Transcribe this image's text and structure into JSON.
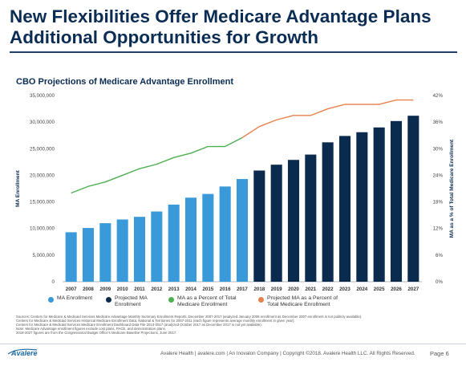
{
  "slide": {
    "title_lines": [
      "New Flexibilities Offer Medicare Advantage Plans",
      "Additional Opportunities for Growth"
    ],
    "subtitle": "CBO Projections of Medicare Advantage Enrollment"
  },
  "chart_data": {
    "type": "bar",
    "title": "CBO Projections of Medicare Advantage Enrollment",
    "categories": [
      "2007",
      "2008",
      "2009",
      "2010",
      "2011",
      "2012",
      "2013",
      "2014",
      "2015",
      "2016",
      "2017",
      "2018",
      "2019",
      "2020",
      "2021",
      "2022",
      "2023",
      "2024",
      "2025",
      "2026",
      "2027"
    ],
    "ylabel": "MA Enrollment",
    "y2label": "MA as a % of Total Medicare Enrollment",
    "ylim": [
      0,
      35000000
    ],
    "y2lim": [
      0,
      42
    ],
    "y_ticks": [
      "0",
      "5,000,000",
      "10,000,000",
      "15,000,000",
      "20,000,000",
      "25,000,000",
      "30,000,000",
      "35,000,000"
    ],
    "y2_ticks": [
      "0%",
      "6%",
      "12%",
      "18%",
      "24%",
      "30%",
      "36%",
      "42%"
    ],
    "grid": false,
    "legend_position": "bottom",
    "series": [
      {
        "name": "MA Enrollment",
        "kind": "bar",
        "axis": "left",
        "color": "#3a9ad9",
        "values": [
          9300000,
          10100000,
          11000000,
          11700000,
          12200000,
          13200000,
          14500000,
          15800000,
          16500000,
          17900000,
          19300000,
          null,
          null,
          null,
          null,
          null,
          null,
          null,
          null,
          null,
          null
        ]
      },
      {
        "name": "Projected MA Enrollment",
        "kind": "bar",
        "axis": "left",
        "color": "#0b2b4e",
        "values": [
          null,
          null,
          null,
          null,
          null,
          null,
          null,
          null,
          null,
          null,
          null,
          20900000,
          22000000,
          22900000,
          23900000,
          26200000,
          27400000,
          28100000,
          29000000,
          30200000,
          31200000
        ]
      },
      {
        "name": "MA as a Percent of Total Medicare Enrollment",
        "kind": "line",
        "axis": "right",
        "color": "#4caf50",
        "values": [
          20,
          21.5,
          22.5,
          24,
          25.5,
          26.5,
          28,
          29,
          30.5,
          30.5,
          32.5,
          null,
          null,
          null,
          null,
          null,
          null,
          null,
          null,
          null,
          null
        ]
      },
      {
        "name": "Projected MA as a Percent of Total Medicare Enrollment",
        "kind": "line",
        "axis": "right",
        "color": "#e8814b",
        "values": [
          null,
          null,
          null,
          null,
          null,
          null,
          null,
          null,
          null,
          null,
          32.5,
          35,
          36.5,
          37.5,
          37.5,
          39,
          40,
          40,
          40,
          41,
          41
        ]
      }
    ]
  },
  "legend": {
    "items": [
      {
        "label": "MA Enrollment",
        "color": "#3a9ad9"
      },
      {
        "label": "Projected MA\nEnrollment",
        "color": "#0b2b4e"
      },
      {
        "label": "MA as a Percent of Total\nMedicare Enrollment",
        "color": "#4caf50"
      },
      {
        "label": "Projected MA as a Percent of\nTotal Medicare Enrollment",
        "color": "#e8814b"
      }
    ]
  },
  "notes": [
    "Sources: Centers for Medicare & Medicaid Services Medicare Advantage Monthly Summary Enrollment Reports, December 2007-2017 (analyzed January 2008 enrollment as December 2007 enrollment is not publicly available).",
    "Centers for Medicare & Medicaid Services Historical Medicare Enrollment Data, National & Territories for 2007-2011 (each figure represents average monthly enrollment in given year).",
    "Centers for Medicare & Medicaid Services Medicare Enrollment Dashboard Data File 2013-2017 (analyzed October 2017 as December 2017 is not yet available).",
    "Note: Medicare Advantage enrollment figures exclude cost plans, PACE, and demonstration plans.",
    "2018-2027 figures are from the Congressional Budget Office's Medicare Baseline Projections, June 2017."
  ],
  "footer": {
    "logo_text": "Avalere",
    "text": "Avalere Health  |  avalere.com  |  An Inovalon Company  |  Copyright ©2018. Avalere Health LLC. All Rights Reserved.",
    "page": "Page 6"
  },
  "colors": {
    "title": "#0b2d53",
    "ma_enrollment": "#3a9ad9",
    "projected_ma_enrollment": "#0b2b4e",
    "ma_percent": "#4caf50",
    "projected_ma_percent": "#e8814b"
  }
}
